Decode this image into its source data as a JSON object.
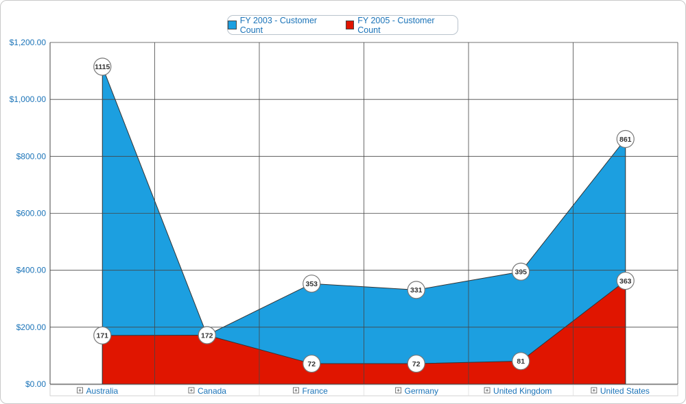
{
  "colors": {
    "series_1": "#1c9fe0",
    "series_2": "#e01500",
    "axis_text": "#1a73b8",
    "grid": "#444444"
  },
  "legend": {
    "items": [
      {
        "label": "FY 2003 - Customer Count",
        "color": "#1c9fe0"
      },
      {
        "label": "FY 2005 - Customer Count",
        "color": "#e01500"
      }
    ]
  },
  "chart_data": {
    "type": "area",
    "categories": [
      "Australia",
      "Canada",
      "France",
      "Germany",
      "United Kingdom",
      "United States"
    ],
    "category_expand_icon": "plus-box-icon",
    "series": [
      {
        "name": "FY 2003 - Customer Count",
        "values": [
          1115,
          172,
          353,
          331,
          395,
          861
        ],
        "labels": [
          "1115",
          "172",
          "353",
          "331",
          "395",
          "861"
        ]
      },
      {
        "name": "FY 2005 - Customer Count",
        "values": [
          171,
          172,
          72,
          72,
          81,
          363
        ],
        "labels": [
          "171",
          "172",
          "72",
          "72",
          "81",
          "363"
        ]
      }
    ],
    "ylim": [
      0,
      1200
    ],
    "yticks": [
      0,
      200,
      400,
      600,
      800,
      1000,
      1200
    ],
    "ytick_labels": [
      "$0.00",
      "$200.00",
      "$400.00",
      "$600.00",
      "$800.00",
      "$1,000.00",
      "$1,200.00"
    ],
    "grid": true,
    "legend_position": "top-center"
  }
}
